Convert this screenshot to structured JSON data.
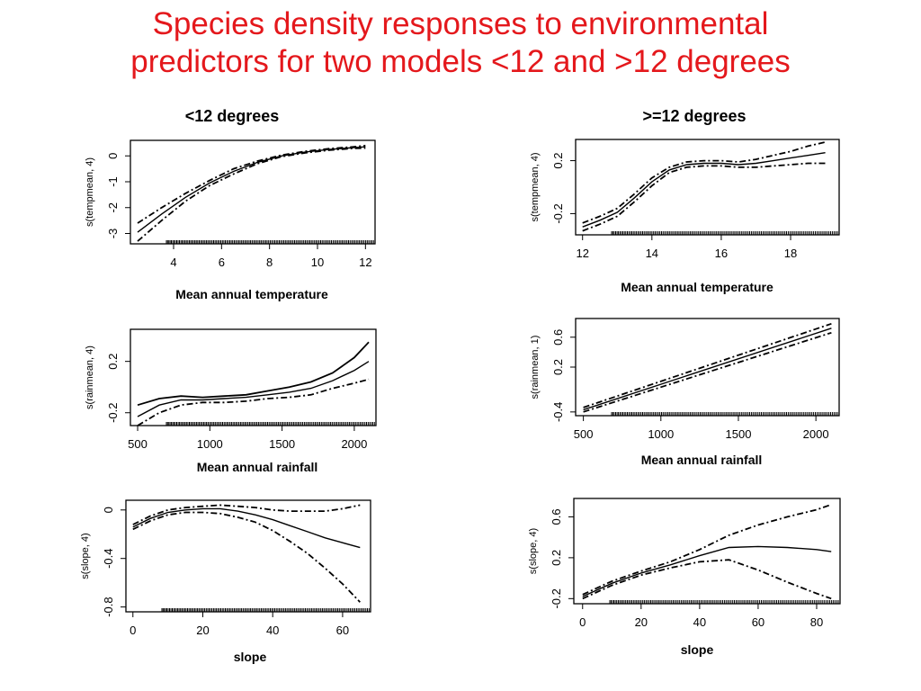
{
  "slide": {
    "title_line1": "Species density responses to environmental",
    "title_line2": "predictors for two models <12 and >12 degrees",
    "left_heading": "<12 degrees",
    "right_heading": ">=12 degrees"
  },
  "chart_data": [
    {
      "type": "line",
      "panel": "left-temperature",
      "xlabel": "Mean annual temperature",
      "ylabel": "s(tempmean, 4)",
      "xlim": [
        2.2,
        12.4
      ],
      "ylim": [
        -3.4,
        0.6
      ],
      "xticks": [
        4,
        6,
        8,
        10,
        12
      ],
      "yticks": [
        -3,
        -2,
        -1,
        0
      ],
      "series": [
        {
          "x": [
            2.5,
            3.5,
            4.5,
            5.5,
            6.5,
            7.5,
            8.5,
            9.5,
            10.5,
            11.5,
            12.0
          ],
          "y": [
            -2.95,
            -2.25,
            -1.6,
            -1.05,
            -0.6,
            -0.25,
            0.0,
            0.15,
            0.25,
            0.32,
            0.35
          ]
        },
        {
          "x": [
            2.5,
            3.5,
            4.5,
            5.5,
            6.5,
            7.5,
            8.5,
            9.5,
            10.5,
            11.5,
            12.0
          ],
          "y": [
            -2.6,
            -2.0,
            -1.45,
            -0.95,
            -0.5,
            -0.2,
            0.03,
            0.18,
            0.28,
            0.35,
            0.4
          ],
          "dash": true
        },
        {
          "x": [
            2.5,
            3.5,
            4.5,
            5.5,
            6.5,
            7.5,
            8.5,
            9.5,
            10.5,
            11.5,
            12.0
          ],
          "y": [
            -3.3,
            -2.5,
            -1.75,
            -1.15,
            -0.7,
            -0.3,
            -0.03,
            0.12,
            0.22,
            0.29,
            0.3
          ],
          "dash": true
        }
      ]
    },
    {
      "type": "line",
      "panel": "right-temperature",
      "xlabel": "Mean annual temperature",
      "ylabel": "s(tempmean, 4)",
      "xlim": [
        11.8,
        19.4
      ],
      "ylim": [
        -0.36,
        0.36
      ],
      "xticks": [
        12,
        14,
        16,
        18
      ],
      "yticks": [
        -0.2,
        0.2
      ],
      "series": [
        {
          "x": [
            12.0,
            12.5,
            13.0,
            13.5,
            14.0,
            14.5,
            15.0,
            15.5,
            16.0,
            16.5,
            17.0,
            17.5,
            18.0,
            18.5,
            19.0
          ],
          "y": [
            -0.3,
            -0.25,
            -0.19,
            -0.08,
            0.04,
            0.13,
            0.17,
            0.18,
            0.18,
            0.17,
            0.18,
            0.2,
            0.22,
            0.24,
            0.26
          ]
        },
        {
          "x": [
            12.0,
            12.5,
            13.0,
            13.5,
            14.0,
            14.5,
            15.0,
            15.5,
            16.0,
            16.5,
            17.0,
            17.5,
            18.0,
            18.5,
            19.0
          ],
          "y": [
            -0.27,
            -0.22,
            -0.16,
            -0.05,
            0.07,
            0.15,
            0.19,
            0.2,
            0.2,
            0.19,
            0.21,
            0.24,
            0.27,
            0.31,
            0.34
          ],
          "dash": true
        },
        {
          "x": [
            12.0,
            12.5,
            13.0,
            13.5,
            14.0,
            14.5,
            15.0,
            15.5,
            16.0,
            16.5,
            17.0,
            17.5,
            18.0,
            18.5,
            19.0
          ],
          "y": [
            -0.33,
            -0.28,
            -0.22,
            -0.11,
            0.01,
            0.11,
            0.15,
            0.16,
            0.16,
            0.15,
            0.15,
            0.16,
            0.17,
            0.18,
            0.18
          ],
          "dash": true
        }
      ]
    },
    {
      "type": "line",
      "panel": "left-rainfall",
      "xlabel": "Mean annual rainfall",
      "ylabel": "s(rainmean, 4)",
      "xlim": [
        450,
        2150
      ],
      "ylim": [
        -0.3,
        0.45
      ],
      "xticks": [
        500,
        1000,
        1500,
        2000
      ],
      "yticks": [
        -0.2,
        0.2
      ],
      "series": [
        {
          "x": [
            500,
            650,
            800,
            950,
            1100,
            1250,
            1400,
            1550,
            1700,
            1850,
            2000,
            2100
          ],
          "y": [
            -0.23,
            -0.14,
            -0.1,
            -0.1,
            -0.09,
            -0.08,
            -0.06,
            -0.04,
            -0.01,
            0.05,
            0.13,
            0.2
          ]
        },
        {
          "x": [
            500,
            650,
            800,
            950,
            1100,
            1250,
            1400,
            1550,
            1700,
            1850,
            2000,
            2100
          ],
          "y": [
            -0.14,
            -0.09,
            -0.07,
            -0.08,
            -0.07,
            -0.06,
            -0.03,
            0.0,
            0.04,
            0.11,
            0.23,
            0.35
          ]
        },
        {
          "x": [
            500,
            650,
            800,
            950,
            1100,
            1250,
            1400,
            1550,
            1700,
            1850,
            2000,
            2100
          ],
          "y": [
            -0.3,
            -0.2,
            -0.14,
            -0.12,
            -0.12,
            -0.11,
            -0.09,
            -0.08,
            -0.06,
            -0.01,
            0.03,
            0.06
          ],
          "dash": true
        }
      ]
    },
    {
      "type": "line",
      "panel": "right-rainfall",
      "xlabel": "Mean annual rainfall",
      "ylabel": "s(rainmean, 1)",
      "xlim": [
        450,
        2150
      ],
      "ylim": [
        -0.45,
        0.85
      ],
      "xticks": [
        500,
        1000,
        1500,
        2000
      ],
      "yticks": [
        -0.4,
        0.2,
        0.6
      ],
      "series": [
        {
          "x": [
            500,
            2100
          ],
          "y": [
            -0.37,
            0.72
          ]
        },
        {
          "x": [
            500,
            2100
          ],
          "y": [
            -0.34,
            0.78
          ],
          "dash": true
        },
        {
          "x": [
            500,
            2100
          ],
          "y": [
            -0.4,
            0.66
          ],
          "dash": true
        }
      ]
    },
    {
      "type": "line",
      "panel": "left-slope",
      "xlabel": "slope",
      "ylabel": "s(slope, 4)",
      "xlim": [
        -2,
        68
      ],
      "ylim": [
        -0.84,
        0.08
      ],
      "xticks": [
        0,
        20,
        40,
        60
      ],
      "yticks": [
        -0.8,
        -0.4,
        0.0
      ],
      "series": [
        {
          "x": [
            0,
            5,
            10,
            15,
            20,
            25,
            30,
            35,
            40,
            45,
            50,
            55,
            60,
            65
          ],
          "y": [
            -0.14,
            -0.07,
            -0.02,
            0.0,
            0.01,
            0.01,
            -0.01,
            -0.04,
            -0.08,
            -0.13,
            -0.18,
            -0.23,
            -0.27,
            -0.31
          ]
        },
        {
          "x": [
            0,
            5,
            10,
            15,
            20,
            25,
            30,
            35,
            40,
            45,
            50,
            55,
            60,
            65
          ],
          "y": [
            -0.12,
            -0.05,
            0.0,
            0.02,
            0.03,
            0.04,
            0.03,
            0.02,
            0.0,
            -0.01,
            -0.01,
            -0.01,
            0.01,
            0.04
          ],
          "dash": true
        },
        {
          "x": [
            0,
            5,
            10,
            15,
            20,
            25,
            30,
            35,
            40,
            45,
            50,
            55,
            60,
            65
          ],
          "y": [
            -0.16,
            -0.09,
            -0.04,
            -0.02,
            -0.02,
            -0.03,
            -0.06,
            -0.1,
            -0.17,
            -0.26,
            -0.36,
            -0.48,
            -0.61,
            -0.76
          ],
          "dash": true
        }
      ]
    },
    {
      "type": "line",
      "panel": "right-slope",
      "xlabel": "slope",
      "ylabel": "s(slope, 4)",
      "xlim": [
        -3,
        88
      ],
      "ylim": [
        -0.25,
        0.78
      ],
      "xticks": [
        0,
        20,
        40,
        60,
        80
      ],
      "yticks": [
        -0.2,
        0.2,
        0.6
      ],
      "series": [
        {
          "x": [
            0,
            10,
            20,
            30,
            40,
            50,
            60,
            70,
            80,
            85
          ],
          "y": [
            -0.18,
            -0.05,
            0.05,
            0.13,
            0.22,
            0.3,
            0.31,
            0.3,
            0.28,
            0.26
          ]
        },
        {
          "x": [
            0,
            10,
            20,
            30,
            40,
            50,
            60,
            70,
            80,
            85
          ],
          "y": [
            -0.16,
            -0.03,
            0.07,
            0.16,
            0.28,
            0.42,
            0.52,
            0.6,
            0.67,
            0.72
          ],
          "dash": true
        },
        {
          "x": [
            0,
            10,
            20,
            30,
            40,
            50,
            60,
            70,
            80,
            85
          ],
          "y": [
            -0.2,
            -0.07,
            0.03,
            0.1,
            0.16,
            0.18,
            0.08,
            -0.04,
            -0.15,
            -0.2
          ],
          "dash": true
        }
      ]
    }
  ]
}
